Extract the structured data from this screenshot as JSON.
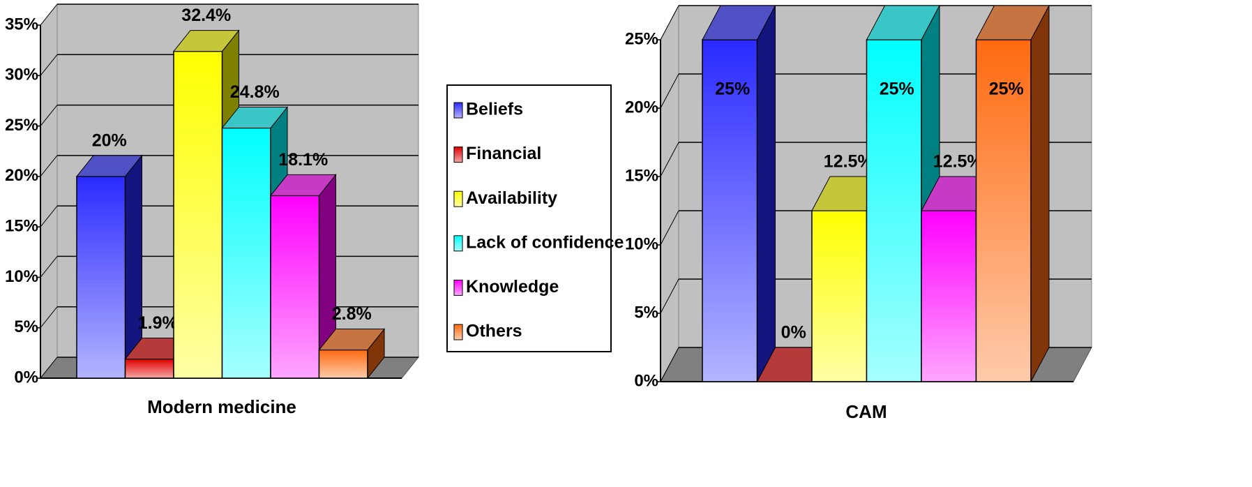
{
  "legend": {
    "items": [
      "Beliefs",
      "Financial",
      "Availability",
      "Lack of confidence",
      "Knowledge",
      "Others"
    ],
    "colors": [
      "#2a2aff",
      "#e00000",
      "#ffff00",
      "#00ffff",
      "#ff00ff",
      "#ff6a10"
    ]
  },
  "chart_data": [
    {
      "type": "bar3d",
      "xlabel": "Modern medicine",
      "values": [
        20,
        1.9,
        32.4,
        24.8,
        18.1,
        2.8
      ],
      "value_labels": [
        "20%",
        "1.9%",
        "32.4%",
        "24.8%",
        "18.1%",
        "2.8%"
      ],
      "ylim": [
        0,
        35
      ],
      "yticks": [
        {
          "value": 0,
          "label": "0%"
        },
        {
          "value": 5,
          "label": "5%"
        },
        {
          "value": 10,
          "label": "10%"
        },
        {
          "value": 15,
          "label": "15%"
        },
        {
          "value": 20,
          "label": "20%"
        },
        {
          "value": 25,
          "label": "25%"
        },
        {
          "value": 30,
          "label": "30%"
        },
        {
          "value": 35,
          "label": "35%"
        }
      ],
      "grid": true
    },
    {
      "type": "bar3d",
      "xlabel": "CAM",
      "values": [
        25,
        0,
        12.5,
        25,
        12.5,
        25
      ],
      "value_labels": [
        "25%",
        "0%",
        "12.5%",
        "25%",
        "12.5%",
        "25%"
      ],
      "ylim": [
        0,
        25
      ],
      "yticks": [
        {
          "value": 0,
          "label": "0%"
        },
        {
          "value": 5,
          "label": "5%"
        },
        {
          "value": 10,
          "label": "10%"
        },
        {
          "value": 15,
          "label": "15%"
        },
        {
          "value": 20,
          "label": "20%"
        },
        {
          "value": 25,
          "label": "25%"
        }
      ],
      "grid": true
    }
  ]
}
